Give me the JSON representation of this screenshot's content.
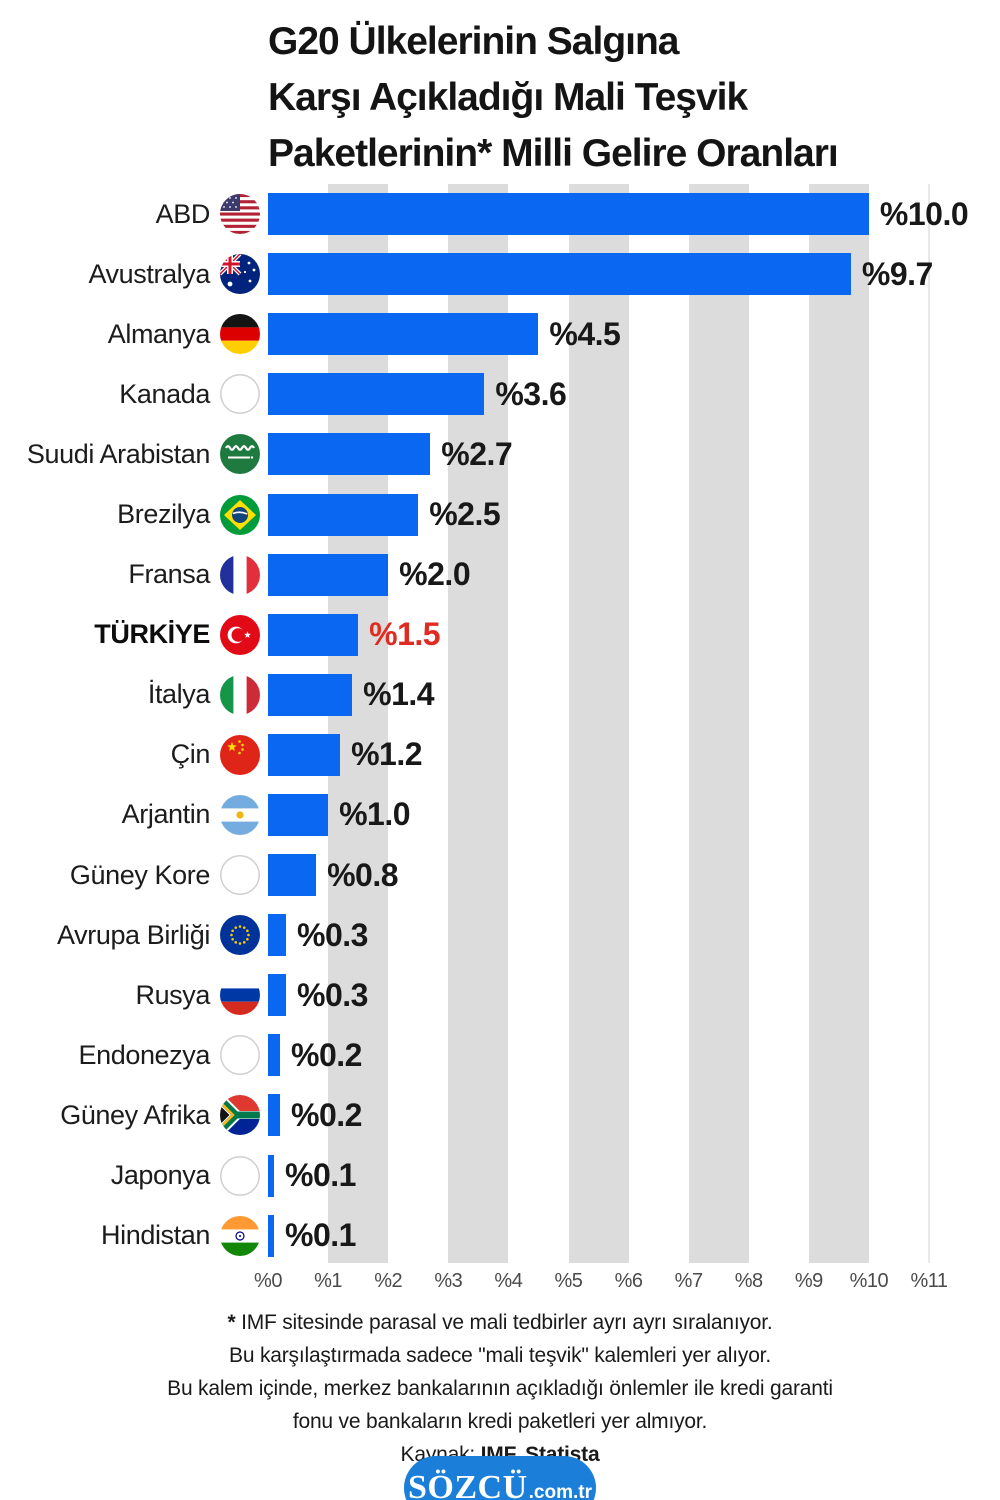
{
  "title_lines": {
    "l1": "G20 Ülkelerinin Salgına",
    "l2": "Karşı Açıkladığı Mali Teşvik",
    "l3": "Paketlerinin* Milli Gelire Oranları"
  },
  "chart_data": {
    "type": "bar",
    "orientation": "horizontal",
    "xmax": 11,
    "xlim": [
      0,
      11
    ],
    "grid": "alternating-gray-bands",
    "bar_color": "#0a67f2",
    "band_color": "#dcdcdc",
    "highlight_color": "#e02b20",
    "x_ticks": [
      "%0",
      "%1",
      "%2",
      "%3",
      "%4",
      "%5",
      "%6",
      "%7",
      "%8",
      "%9",
      "%10",
      "%11"
    ],
    "rows": [
      {
        "label": "ABD",
        "flag_icon": "flag-abd-icon",
        "value": 10.0,
        "value_label": "%10.0",
        "highlight": false
      },
      {
        "label": "Avustralya",
        "flag_icon": "flag-avustralya-icon",
        "value": 9.7,
        "value_label": "%9.7",
        "highlight": false
      },
      {
        "label": "Almanya",
        "flag_icon": "flag-almanya-icon",
        "value": 4.5,
        "value_label": "%4.5",
        "highlight": false
      },
      {
        "label": "Kanada",
        "flag_icon": "flag-kanada-icon",
        "value": 3.6,
        "value_label": "%3.6",
        "highlight": false
      },
      {
        "label": "Suudi Arabistan",
        "flag_icon": "flag-suudi-arabistan-icon",
        "value": 2.7,
        "value_label": "%2.7",
        "highlight": false
      },
      {
        "label": "Brezilya",
        "flag_icon": "flag-brezilya-icon",
        "value": 2.5,
        "value_label": "%2.5",
        "highlight": false
      },
      {
        "label": "Fransa",
        "flag_icon": "flag-fransa-icon",
        "value": 2.0,
        "value_label": "%2.0",
        "highlight": false
      },
      {
        "label": "TÜRKİYE",
        "flag_icon": "flag-turkiye-icon",
        "value": 1.5,
        "value_label": "%1.5",
        "highlight": true
      },
      {
        "label": "İtalya",
        "flag_icon": "flag-italya-icon",
        "value": 1.4,
        "value_label": "%1.4",
        "highlight": false
      },
      {
        "label": "Çin",
        "flag_icon": "flag-cin-icon",
        "value": 1.2,
        "value_label": "%1.2",
        "highlight": false
      },
      {
        "label": "Arjantin",
        "flag_icon": "flag-arjantin-icon",
        "value": 1.0,
        "value_label": "%1.0",
        "highlight": false
      },
      {
        "label": "Güney Kore",
        "flag_icon": "flag-guney-kore-icon",
        "value": 0.8,
        "value_label": "%0.8",
        "highlight": false
      },
      {
        "label": "Avrupa Birliği",
        "flag_icon": "flag-avrupa-birligi-icon",
        "value": 0.3,
        "value_label": "%0.3",
        "highlight": false
      },
      {
        "label": "Rusya",
        "flag_icon": "flag-rusya-icon",
        "value": 0.3,
        "value_label": "%0.3",
        "highlight": false
      },
      {
        "label": "Endonezya",
        "flag_icon": "flag-endonezya-icon",
        "value": 0.2,
        "value_label": "%0.2",
        "highlight": false
      },
      {
        "label": "Güney Afrika",
        "flag_icon": "flag-guney-afrika-icon",
        "value": 0.2,
        "value_label": "%0.2",
        "highlight": false
      },
      {
        "label": "Japonya",
        "flag_icon": "flag-japonya-icon",
        "value": 0.1,
        "value_label": "%0.1",
        "highlight": false
      },
      {
        "label": "Hindistan",
        "flag_icon": "flag-hindistan-icon",
        "value": 0.1,
        "value_label": "%0.1",
        "highlight": false
      }
    ]
  },
  "footnote": {
    "star": "*",
    "line1": " IMF sitesinde parasal ve mali tedbirler ayrı ayrı sıralanıyor.",
    "line2": "Bu karşılaştırmada sadece \"mali teşvik\" kalemleri yer alıyor.",
    "line3": "Bu kalem içinde, merkez bankalarının açıkladığı önlemler ile kredi garanti",
    "line4": "fonu ve bankaların kredi paketleri yer almıyor.",
    "kaynak_label": "Kaynak: ",
    "kaynak_value": "IMF, Statista"
  },
  "logo": {
    "wordmark": "SÖZCÜ",
    "suffix": ".com.tr",
    "color": "#1b7fd9"
  }
}
